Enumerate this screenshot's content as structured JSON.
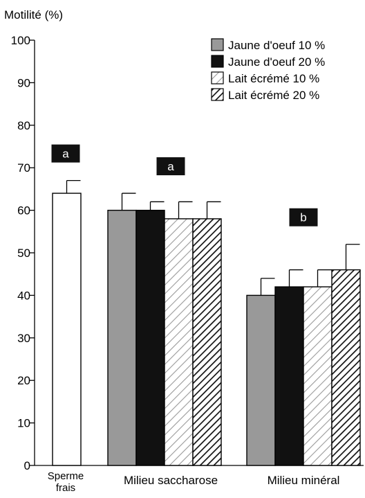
{
  "chart_data": {
    "type": "bar",
    "title": "",
    "ylabel": "Motilité (%)",
    "xlabel": "",
    "ylim": [
      0,
      100
    ],
    "yticks": [
      0,
      10,
      20,
      30,
      40,
      50,
      60,
      70,
      80,
      90,
      100
    ],
    "grid": false,
    "legend_position": "top-right",
    "series": [
      {
        "name": "Jaune d'oeuf 10 %",
        "style": "solid",
        "color": "#999999"
      },
      {
        "name": "Jaune d'oeuf 20 %",
        "style": "solid",
        "color": "#111111"
      },
      {
        "name": "Lait écrémé 10 %",
        "style": "hatch-light",
        "color": "#ffffff"
      },
      {
        "name": "Lait écrémé 20 %",
        "style": "hatch-dense",
        "color": "#ffffff"
      },
      {
        "name": "Sperme frais",
        "style": "open",
        "color": "#ffffff"
      }
    ],
    "groups": [
      {
        "label": "Sperme frais",
        "label_lines": [
          "Sperme",
          "frais"
        ],
        "significance": "a",
        "bars": [
          {
            "series_index": 4,
            "value": 64,
            "error": 3
          }
        ]
      },
      {
        "label": "Milieu saccharose",
        "label_lines": [
          "Milieu saccharose"
        ],
        "significance": "a",
        "bars": [
          {
            "series_index": 0,
            "value": 60,
            "error": 4
          },
          {
            "series_index": 1,
            "value": 60,
            "error": 2
          },
          {
            "series_index": 2,
            "value": 58,
            "error": 4
          },
          {
            "series_index": 3,
            "value": 58,
            "error": 4
          }
        ]
      },
      {
        "label": "Milieu minéral",
        "label_lines": [
          "Milieu minéral"
        ],
        "significance": "b",
        "bars": [
          {
            "series_index": 0,
            "value": 40,
            "error": 4
          },
          {
            "series_index": 1,
            "value": 42,
            "error": 4
          },
          {
            "series_index": 2,
            "value": 42,
            "error": 4
          },
          {
            "series_index": 3,
            "value": 46,
            "error": 6
          }
        ]
      }
    ]
  }
}
